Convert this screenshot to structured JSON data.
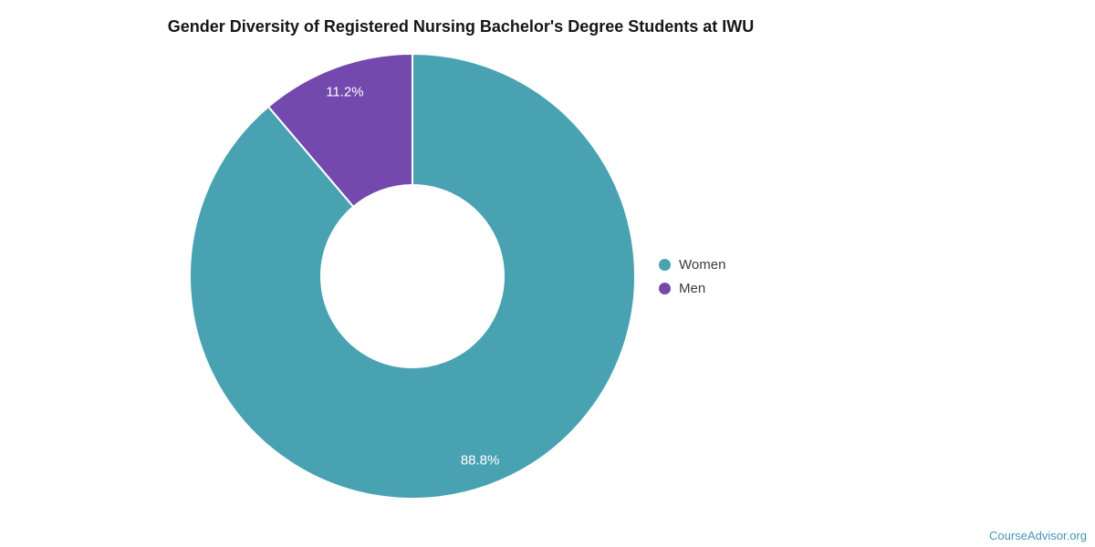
{
  "page": {
    "background": "#ffffff",
    "watermark": "CourseAdvisor.org",
    "watermark_color": "#4694b8"
  },
  "chart_data": {
    "type": "pie",
    "subtype": "donut",
    "title": "Gender Diversity of Registered Nursing Bachelor's Degree Students at IWU",
    "categories": [
      "Women",
      "Men"
    ],
    "values": [
      88.8,
      11.2
    ],
    "labels": [
      "88.8%",
      "11.2%"
    ],
    "colors": [
      "#49a2b2",
      "#7449ad"
    ],
    "label_color": "#ffffff",
    "separator_color": "#ffffff",
    "start_angle_deg": 0,
    "direction": "clockwise",
    "donut_hole_ratio": 0.41,
    "legend_position": "right"
  }
}
